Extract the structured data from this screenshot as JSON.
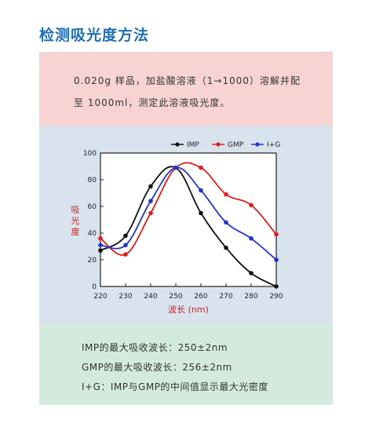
{
  "page": {
    "title": "检测吸光度方法"
  },
  "method": {
    "line1": "0.020g 样品，加盐酸溶液（1→1000）溶解并配",
    "line2": "至 1000ml，测定此溶液吸光度。"
  },
  "notes": {
    "line1": "IMP的最大吸收波长：250±2nm",
    "line2": "GMP的最大吸收波长：256±2nm",
    "line3": "I+G：IMP与GMP的中间值显示最大光密度"
  },
  "chart_data": {
    "type": "line",
    "xlabel": "波长 (nm)",
    "ylabel": "吸光度",
    "xlim": [
      220,
      290
    ],
    "ylim": [
      0,
      100
    ],
    "x_ticks": [
      220,
      230,
      240,
      250,
      260,
      270,
      280,
      290
    ],
    "y_ticks": [
      0,
      20,
      40,
      60,
      80,
      100
    ],
    "legend_position": "top",
    "series": [
      {
        "name": "IMP",
        "color": "#111111",
        "x": [
          220,
          230,
          240,
          250,
          260,
          270,
          280,
          290
        ],
        "values": [
          27,
          38,
          75,
          89,
          55,
          29,
          10,
          0
        ]
      },
      {
        "name": "GMP",
        "color": "#e01b1b",
        "x": [
          220,
          230,
          240,
          250,
          260,
          270,
          280,
          290
        ],
        "values": [
          36,
          24,
          55,
          89,
          89,
          69,
          61,
          39
        ]
      },
      {
        "name": "I+G",
        "color": "#2233cc",
        "x": [
          220,
          230,
          240,
          250,
          260,
          270,
          280,
          290
        ],
        "values": [
          31,
          31,
          64,
          89,
          72,
          48,
          36,
          20
        ]
      }
    ]
  }
}
